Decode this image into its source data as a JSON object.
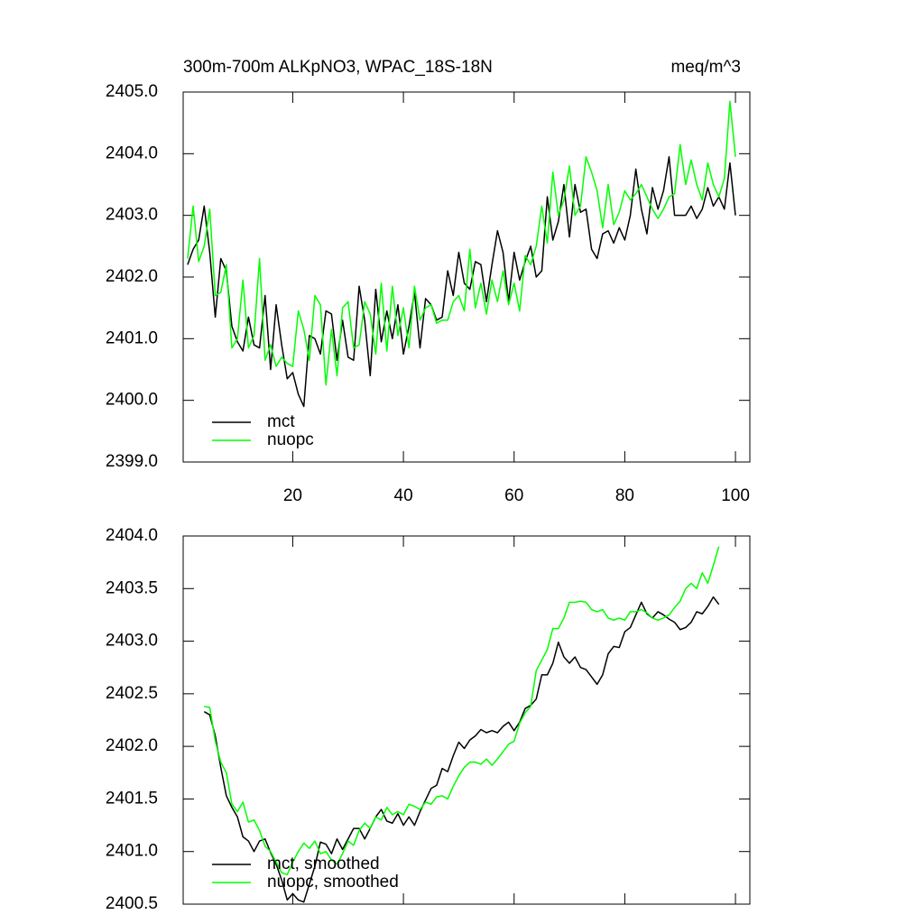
{
  "chart_data": [
    {
      "type": "line",
      "title": "300m-700m ALKpNO3, WPAC_18S-18N",
      "units": "meq/m^3",
      "x": [
        1,
        2,
        3,
        4,
        5,
        6,
        7,
        8,
        9,
        10,
        11,
        12,
        13,
        14,
        15,
        16,
        17,
        18,
        19,
        20,
        21,
        22,
        23,
        24,
        25,
        26,
        27,
        28,
        29,
        30,
        31,
        32,
        33,
        34,
        35,
        36,
        37,
        38,
        39,
        40,
        41,
        42,
        43,
        44,
        45,
        46,
        47,
        48,
        49,
        50,
        51,
        52,
        53,
        54,
        55,
        56,
        57,
        58,
        59,
        60,
        61,
        62,
        63,
        64,
        65,
        66,
        67,
        68,
        69,
        70,
        71,
        72,
        73,
        74,
        75,
        76,
        77,
        78,
        79,
        80,
        81,
        82,
        83,
        84,
        85,
        86,
        87,
        88,
        89,
        90,
        91,
        92,
        93,
        94,
        95,
        96,
        97,
        98,
        99,
        100
      ],
      "series": [
        {
          "name": "mct",
          "color": "#000000",
          "values": [
            2402.2,
            2402.45,
            2402.6,
            2403.15,
            2402.4,
            2401.35,
            2402.3,
            2402.1,
            2401.2,
            2400.95,
            2400.8,
            2401.35,
            2400.9,
            2400.85,
            2401.7,
            2400.5,
            2401.55,
            2400.9,
            2400.35,
            2400.45,
            2400.1,
            2399.9,
            2401.05,
            2401.0,
            2400.75,
            2401.45,
            2401.4,
            2400.65,
            2401.3,
            2400.7,
            2400.65,
            2401.85,
            2401.3,
            2400.4,
            2401.8,
            2400.95,
            2401.45,
            2401.0,
            2401.55,
            2400.75,
            2401.2,
            2401.75,
            2400.85,
            2401.65,
            2401.55,
            2401.3,
            2401.35,
            2402.1,
            2401.7,
            2402.4,
            2401.9,
            2401.8,
            2402.25,
            2402.2,
            2401.6,
            2402.2,
            2402.75,
            2402.4,
            2401.6,
            2402.4,
            2401.95,
            2402.25,
            2402.5,
            2402.0,
            2402.1,
            2403.3,
            2402.6,
            2402.9,
            2403.5,
            2402.65,
            2403.5,
            2403.05,
            2403.1,
            2402.45,
            2402.3,
            2402.7,
            2402.75,
            2402.55,
            2402.8,
            2402.6,
            2403.0,
            2403.75,
            2403.1,
            2402.7,
            2403.45,
            2403.1,
            2403.4,
            2403.95,
            2403.0,
            2403.0,
            2403.0,
            2403.15,
            2402.95,
            2403.1,
            2403.45,
            2403.15,
            2403.3,
            2403.1,
            2403.85,
            2403.0
          ]
        },
        {
          "name": "nuopc",
          "color": "#00ff00",
          "values": [
            2402.3,
            2403.15,
            2402.25,
            2402.5,
            2403.1,
            2401.7,
            2401.75,
            2402.2,
            2400.85,
            2401.0,
            2401.95,
            2400.85,
            2401.05,
            2402.3,
            2400.65,
            2400.9,
            2400.55,
            2400.7,
            2400.6,
            2400.55,
            2401.45,
            2401.15,
            2400.65,
            2401.7,
            2401.55,
            2400.25,
            2401.15,
            2400.4,
            2401.5,
            2401.6,
            2400.85,
            2400.9,
            2401.6,
            2401.4,
            2400.75,
            2401.9,
            2400.8,
            2401.85,
            2401.05,
            2401.5,
            2400.85,
            2401.85,
            2401.3,
            2401.5,
            2401.55,
            2401.25,
            2401.3,
            2401.3,
            2401.6,
            2401.7,
            2401.45,
            2402.45,
            2401.5,
            2401.9,
            2401.4,
            2401.95,
            2401.6,
            2402.1,
            2401.55,
            2401.9,
            2401.45,
            2402.35,
            2402.2,
            2402.5,
            2403.15,
            2402.55,
            2403.7,
            2403.0,
            2403.25,
            2403.8,
            2403.0,
            2403.15,
            2403.95,
            2403.7,
            2403.4,
            2402.8,
            2403.5,
            2402.85,
            2403.05,
            2403.4,
            2403.25,
            2403.35,
            2403.5,
            2403.3,
            2403.1,
            2402.95,
            2403.1,
            2403.3,
            2403.35,
            2404.15,
            2403.5,
            2403.9,
            2403.5,
            2403.25,
            2403.85,
            2403.5,
            2403.3,
            2403.6,
            2404.85,
            2403.95
          ]
        }
      ],
      "xlim": [
        0.2,
        102.6
      ],
      "xticks": [
        20,
        40,
        60,
        80,
        100
      ],
      "show_xtick_labels": true,
      "ylim": [
        2399,
        2405
      ],
      "yticks": [
        {
          "value": 2399,
          "label": "2399.0"
        },
        {
          "value": 2400,
          "label": "2400.0"
        },
        {
          "value": 2401,
          "label": "2401.0"
        },
        {
          "value": 2402,
          "label": "2402.0"
        },
        {
          "value": 2403,
          "label": "2403.0"
        },
        {
          "value": 2404,
          "label": "2404.0"
        },
        {
          "value": 2405,
          "label": "2405.0"
        }
      ],
      "legend": "lower left"
    },
    {
      "type": "line",
      "x": [
        4,
        5,
        6,
        7,
        8,
        9,
        10,
        11,
        12,
        13,
        14,
        15,
        16,
        17,
        18,
        19,
        20,
        21,
        22,
        23,
        24,
        25,
        26,
        27,
        28,
        29,
        30,
        31,
        32,
        33,
        34,
        35,
        36,
        37,
        38,
        39,
        40,
        41,
        42,
        43,
        44,
        45,
        46,
        47,
        48,
        49,
        50,
        51,
        52,
        53,
        54,
        55,
        56,
        57,
        58,
        59,
        60,
        61,
        62,
        63,
        64,
        65,
        66,
        67,
        68,
        69,
        70,
        71,
        72,
        73,
        74,
        75,
        76,
        77,
        78,
        79,
        80,
        81,
        82,
        83,
        84,
        85,
        86,
        87,
        88,
        89,
        90,
        91,
        92,
        93,
        94,
        95,
        96,
        97
      ],
      "series": [
        {
          "name": "mct, smoothed",
          "color": "#000000",
          "values": [
            2402.33,
            2402.3,
            2402.1,
            2401.8,
            2401.53,
            2401.42,
            2401.33,
            2401.14,
            2401.1,
            2401.0,
            2401.1,
            2401.12,
            2400.99,
            2400.88,
            2400.73,
            2400.54,
            2400.6,
            2400.54,
            2400.52,
            2400.69,
            2400.86,
            2401.09,
            2401.07,
            2400.98,
            2401.12,
            2401.02,
            2401.12,
            2401.22,
            2401.22,
            2401.12,
            2401.22,
            2401.33,
            2401.4,
            2401.29,
            2401.27,
            2401.36,
            2401.25,
            2401.33,
            2401.25,
            2401.38,
            2401.49,
            2401.6,
            2401.63,
            2401.79,
            2401.76,
            2401.91,
            2402.04,
            2401.98,
            2402.06,
            2402.1,
            2402.16,
            2402.13,
            2402.15,
            2402.13,
            2402.19,
            2402.23,
            2402.15,
            2402.23,
            2402.36,
            2402.39,
            2402.45,
            2402.68,
            2402.68,
            2402.79,
            2402.99,
            2402.85,
            2402.79,
            2402.85,
            2402.75,
            2402.73,
            2402.66,
            2402.59,
            2402.68,
            2402.88,
            2402.95,
            2402.94,
            2403.09,
            2403.13,
            2403.25,
            2403.37,
            2403.26,
            2403.22,
            2403.28,
            2403.25,
            2403.21,
            2403.18,
            2403.11,
            2403.13,
            2403.18,
            2403.28,
            2403.26,
            2403.33,
            2403.42,
            2403.35
          ]
        },
        {
          "name": "nuopc, smoothed",
          "color": "#00ff00",
          "values": [
            2402.38,
            2402.37,
            2402.05,
            2401.85,
            2401.75,
            2401.45,
            2401.38,
            2401.47,
            2401.28,
            2401.3,
            2401.2,
            2401.05,
            2401.0,
            2400.9,
            2400.8,
            2400.78,
            2400.9,
            2401.0,
            2401.08,
            2401.03,
            2401.1,
            2400.98,
            2401.0,
            2400.92,
            2400.88,
            2400.98,
            2401.1,
            2401.06,
            2401.2,
            2401.27,
            2401.22,
            2401.33,
            2401.3,
            2401.42,
            2401.35,
            2401.38,
            2401.35,
            2401.45,
            2401.43,
            2401.4,
            2401.47,
            2401.45,
            2401.52,
            2401.53,
            2401.5,
            2401.62,
            2401.72,
            2401.8,
            2401.85,
            2401.85,
            2401.83,
            2401.88,
            2401.82,
            2401.88,
            2401.95,
            2402.02,
            2402.05,
            2402.22,
            2402.32,
            2402.38,
            2402.72,
            2402.82,
            2402.92,
            2403.12,
            2403.12,
            2403.22,
            2403.37,
            2403.37,
            2403.38,
            2403.37,
            2403.3,
            2403.28,
            2403.3,
            2403.22,
            2403.2,
            2403.22,
            2403.2,
            2403.28,
            2403.28,
            2403.3,
            2403.27,
            2403.22,
            2403.2,
            2403.22,
            2403.25,
            2403.32,
            2403.38,
            2403.5,
            2403.55,
            2403.5,
            2403.65,
            2403.55,
            2403.72,
            2403.9
          ]
        }
      ],
      "xlim": [
        0.2,
        102.6
      ],
      "xticks": [
        20,
        40,
        60,
        80,
        100
      ],
      "show_xtick_labels": false,
      "ylim": [
        2400.5,
        2404
      ],
      "yticks": [
        {
          "value": 2400.5,
          "label": "2400.5"
        },
        {
          "value": 2401,
          "label": "2401.0"
        },
        {
          "value": 2401.5,
          "label": "2401.5"
        },
        {
          "value": 2402,
          "label": "2402.0"
        },
        {
          "value": 2402.5,
          "label": "2402.5"
        },
        {
          "value": 2403,
          "label": "2403.0"
        },
        {
          "value": 2403.5,
          "label": "2403.5"
        },
        {
          "value": 2404,
          "label": "2404.0"
        }
      ],
      "legend": "lower left"
    }
  ]
}
